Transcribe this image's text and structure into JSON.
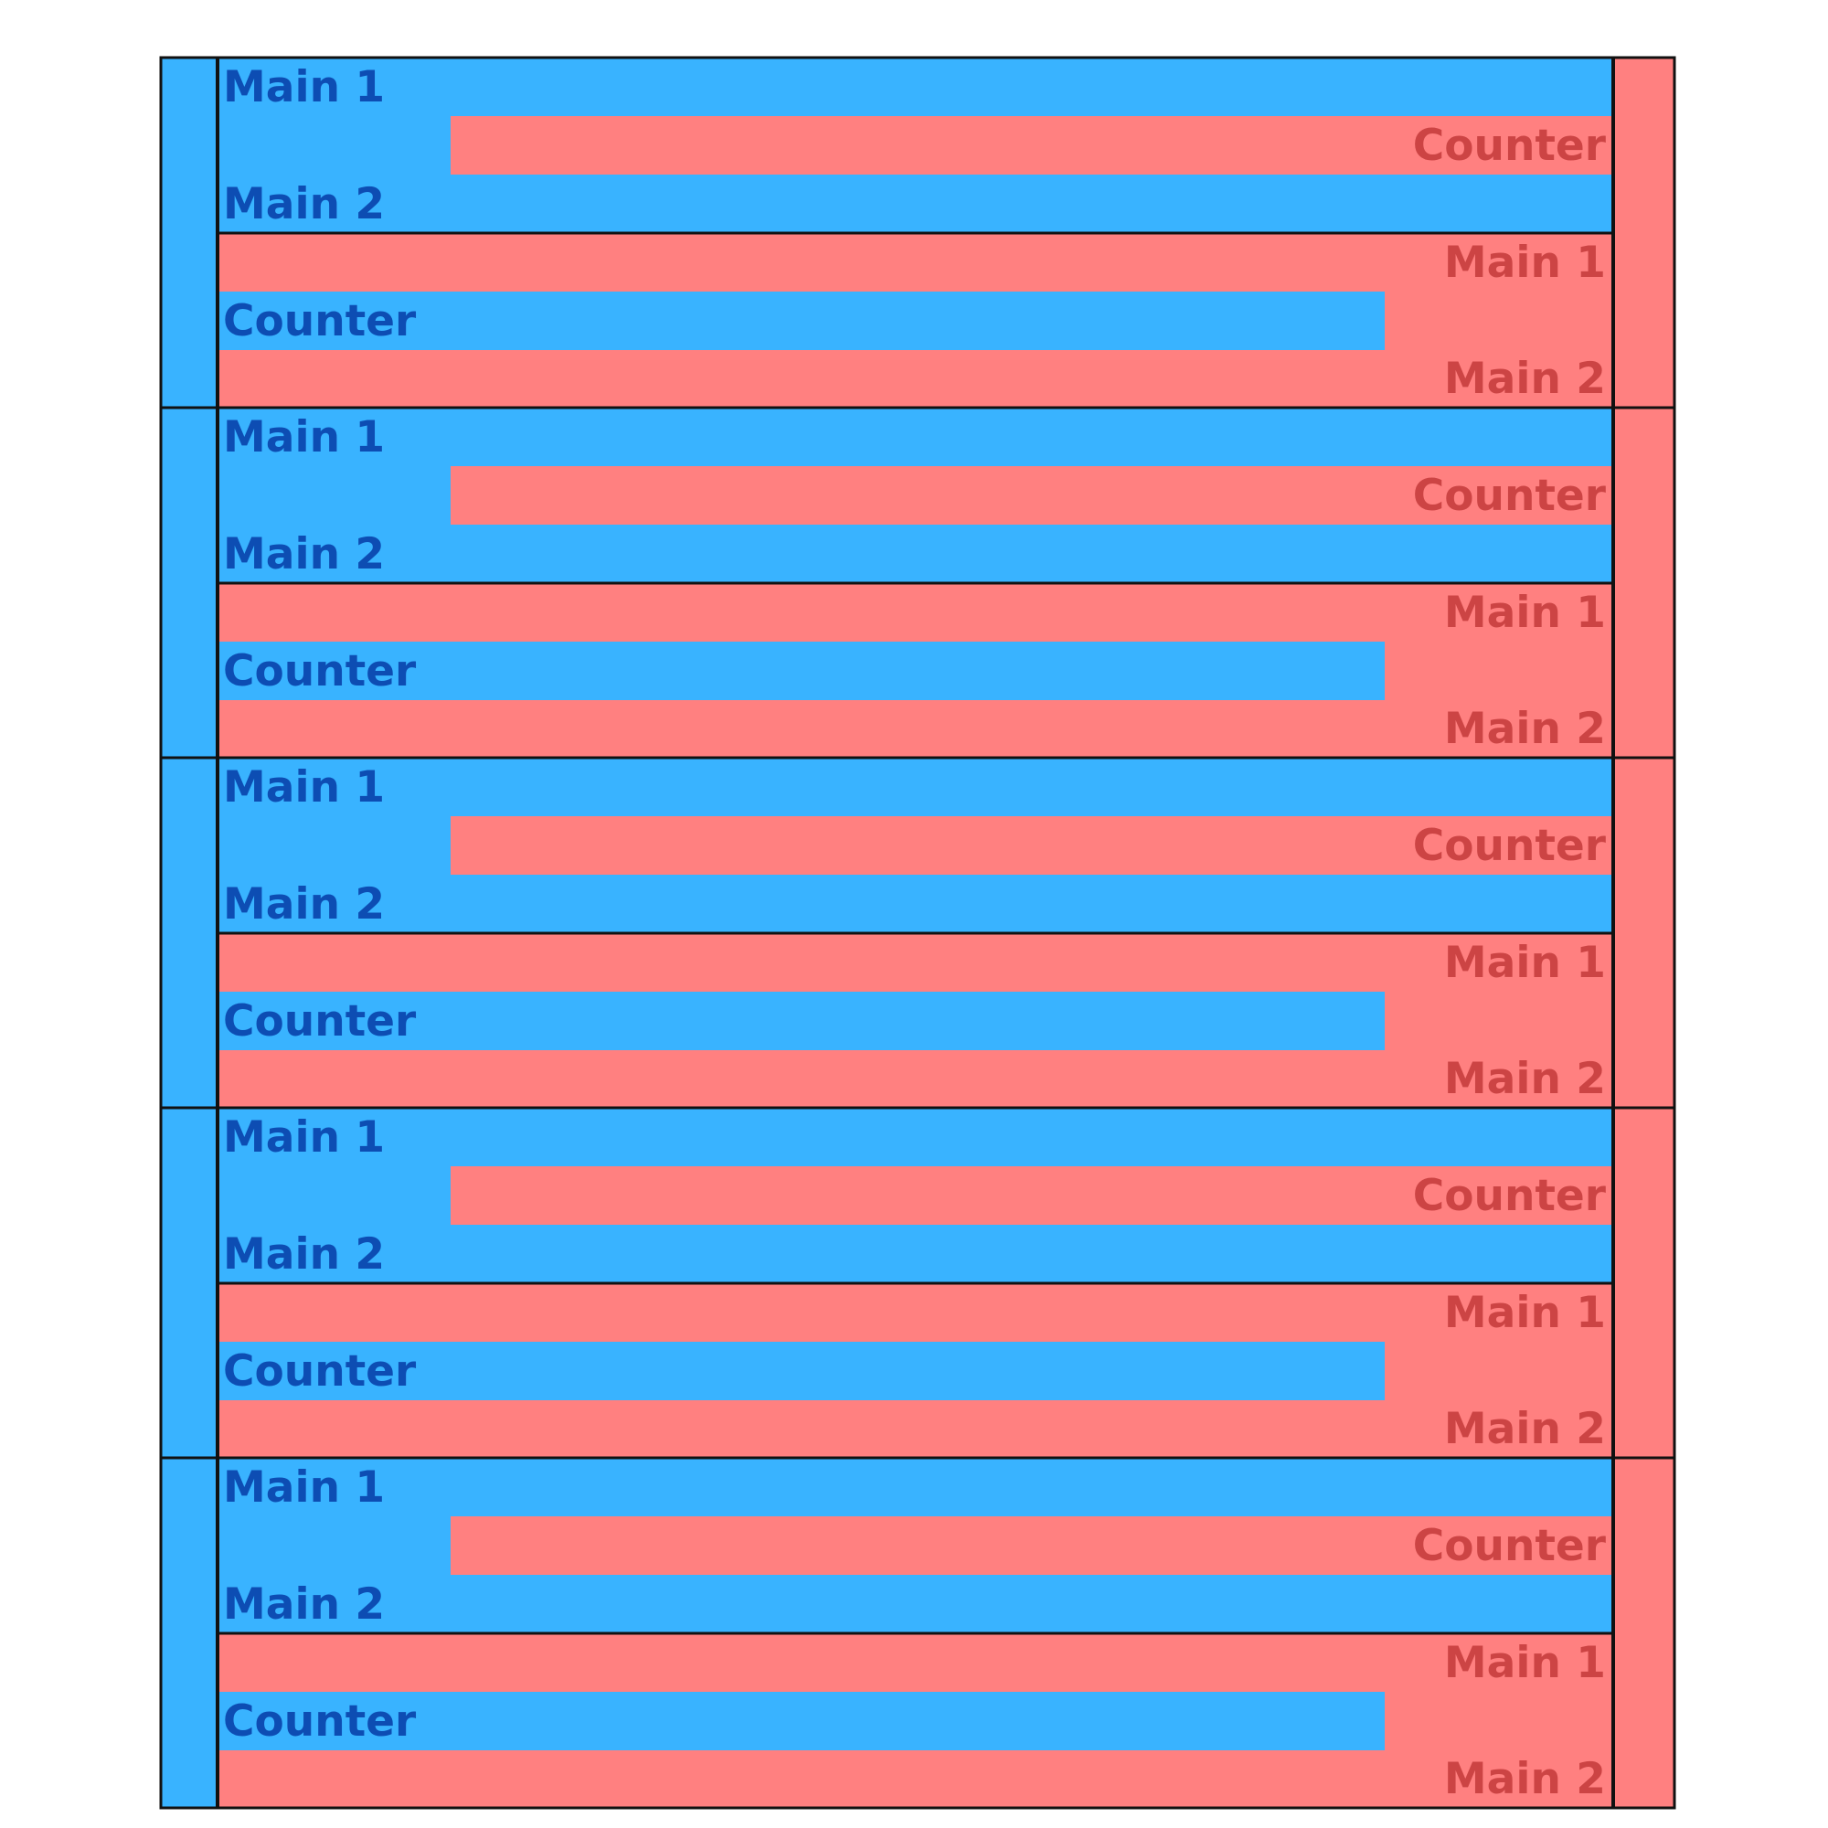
{
  "colors": {
    "blue": "#39b3ff",
    "red": "#ff8080",
    "blue_text": "#0d4db3",
    "red_text": "#cc4444",
    "border": "#111111"
  },
  "blocks": [
    {
      "blue_half": {
        "main_1": "Main 1",
        "counter": "Counter",
        "main_2": "Main 2"
      },
      "red_half": {
        "main_1": "Main 1",
        "counter": "Counter",
        "main_2": "Main 2"
      }
    },
    {
      "blue_half": {
        "main_1": "Main 1",
        "counter": "Counter",
        "main_2": "Main 2"
      },
      "red_half": {
        "main_1": "Main 1",
        "counter": "Counter",
        "main_2": "Main 2"
      }
    },
    {
      "blue_half": {
        "main_1": "Main 1",
        "counter": "Counter",
        "main_2": "Main 2"
      },
      "red_half": {
        "main_1": "Main 1",
        "counter": "Counter",
        "main_2": "Main 2"
      }
    },
    {
      "blue_half": {
        "main_1": "Main 1",
        "counter": "Counter",
        "main_2": "Main 2"
      },
      "red_half": {
        "main_1": "Main 1",
        "counter": "Counter",
        "main_2": "Main 2"
      }
    },
    {
      "blue_half": {
        "main_1": "Main 1",
        "counter": "Counter",
        "main_2": "Main 2"
      },
      "red_half": {
        "main_1": "Main 1",
        "counter": "Counter",
        "main_2": "Main 2"
      }
    }
  ]
}
